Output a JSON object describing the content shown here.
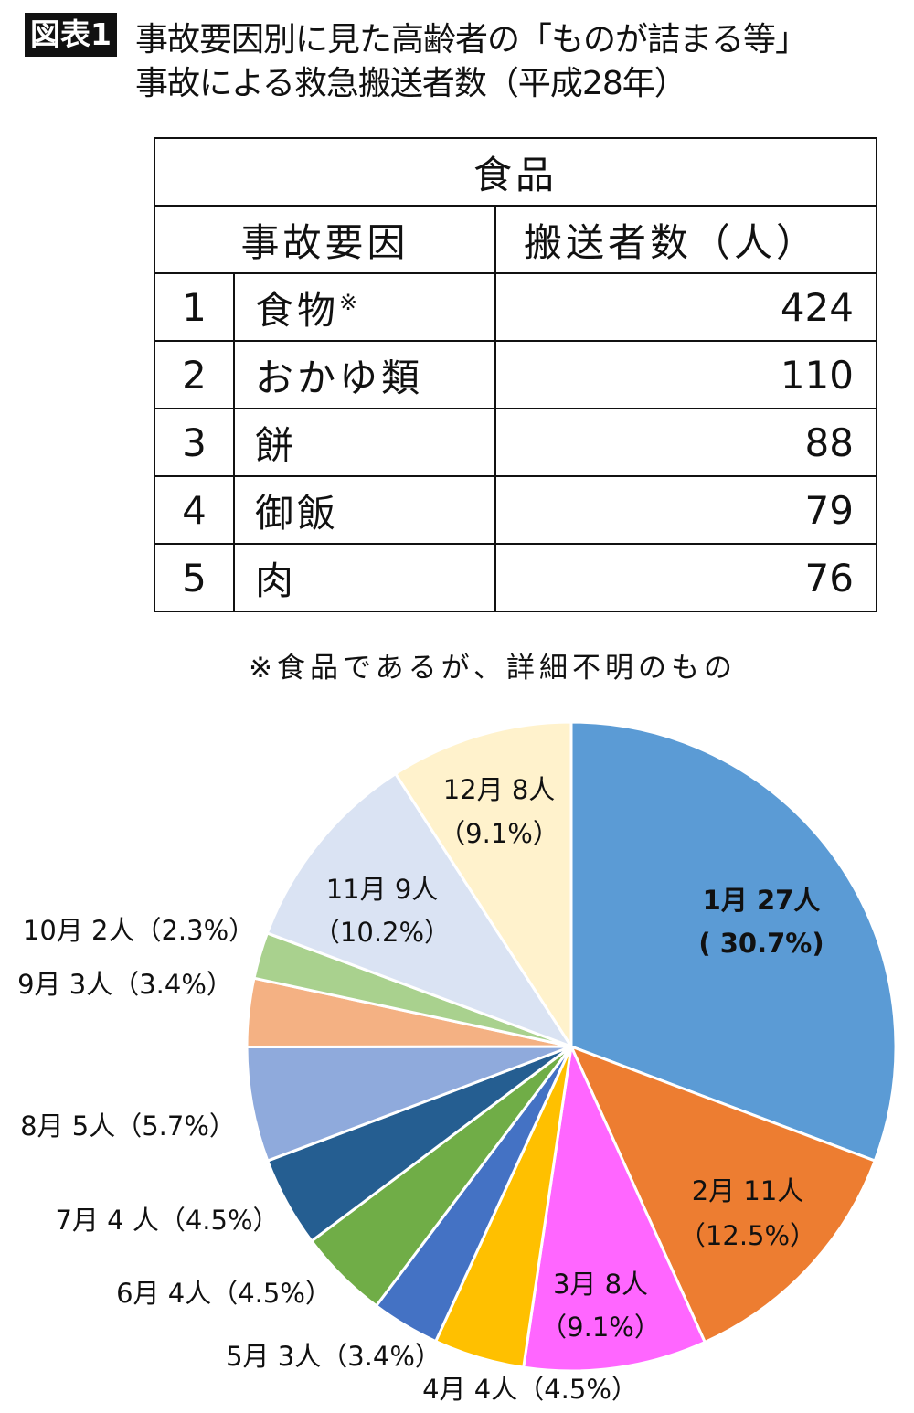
{
  "header": {
    "badge": "図表1",
    "title_line1": "事故要因別に見た高齢者の「ものが詰まる等」",
    "title_line2": "事故による救急搬送者数（平成28年）"
  },
  "table": {
    "group_header": "食品",
    "col_cause": "事故要因",
    "col_count": "搬送者数（人）",
    "rows": [
      {
        "rank": "1",
        "name": "食物",
        "mark": "※",
        "count": "424"
      },
      {
        "rank": "2",
        "name": "おかゆ類",
        "mark": "",
        "count": "110"
      },
      {
        "rank": "3",
        "name": "餅",
        "mark": "",
        "count": "88"
      },
      {
        "rank": "4",
        "name": "御飯",
        "mark": "",
        "count": "79"
      },
      {
        "rank": "5",
        "name": "肉",
        "mark": "",
        "count": "76"
      }
    ],
    "note": "※食品であるが、詳細不明のもの"
  },
  "chart_data": {
    "type": "pie",
    "start": "top",
    "direction": "clockwise",
    "categories": [
      "1月",
      "2月",
      "3月",
      "4月",
      "5月",
      "6月",
      "7月",
      "8月",
      "9月",
      "10月",
      "11月",
      "12月"
    ],
    "values": [
      27,
      11,
      8,
      4,
      3,
      4,
      4,
      5,
      3,
      2,
      9,
      8
    ],
    "percents": [
      30.7,
      12.5,
      9.1,
      4.5,
      3.4,
      4.5,
      4.5,
      5.7,
      3.4,
      2.3,
      10.2,
      9.1
    ],
    "colors": [
      "#5b9bd5",
      "#ed7d31",
      "#ff66ff",
      "#ffc000",
      "#4472c4",
      "#70ad47",
      "#255e91",
      "#8faadc",
      "#f4b183",
      "#a9d18e",
      "#dae3f3",
      "#fff2cc"
    ],
    "labels": [
      [
        "1月 27人",
        "( 30.7%)"
      ],
      [
        "2月 11人",
        "（12.5%）"
      ],
      [
        "3月 8人",
        "（9.1%）"
      ],
      [
        "4月 4人（4.5%）"
      ],
      [
        "5月 3人（3.4%）"
      ],
      [
        "6月 4人（4.5%）"
      ],
      [
        "7月 4 人（4.5%）"
      ],
      [
        "8月 5人（5.7%）"
      ],
      [
        "9月 3人（3.4%）"
      ],
      [
        "10月 2人（2.3%）"
      ],
      [
        "11月 9人",
        "（10.2%）"
      ],
      [
        "12月 8人",
        "（9.1%）"
      ]
    ]
  }
}
